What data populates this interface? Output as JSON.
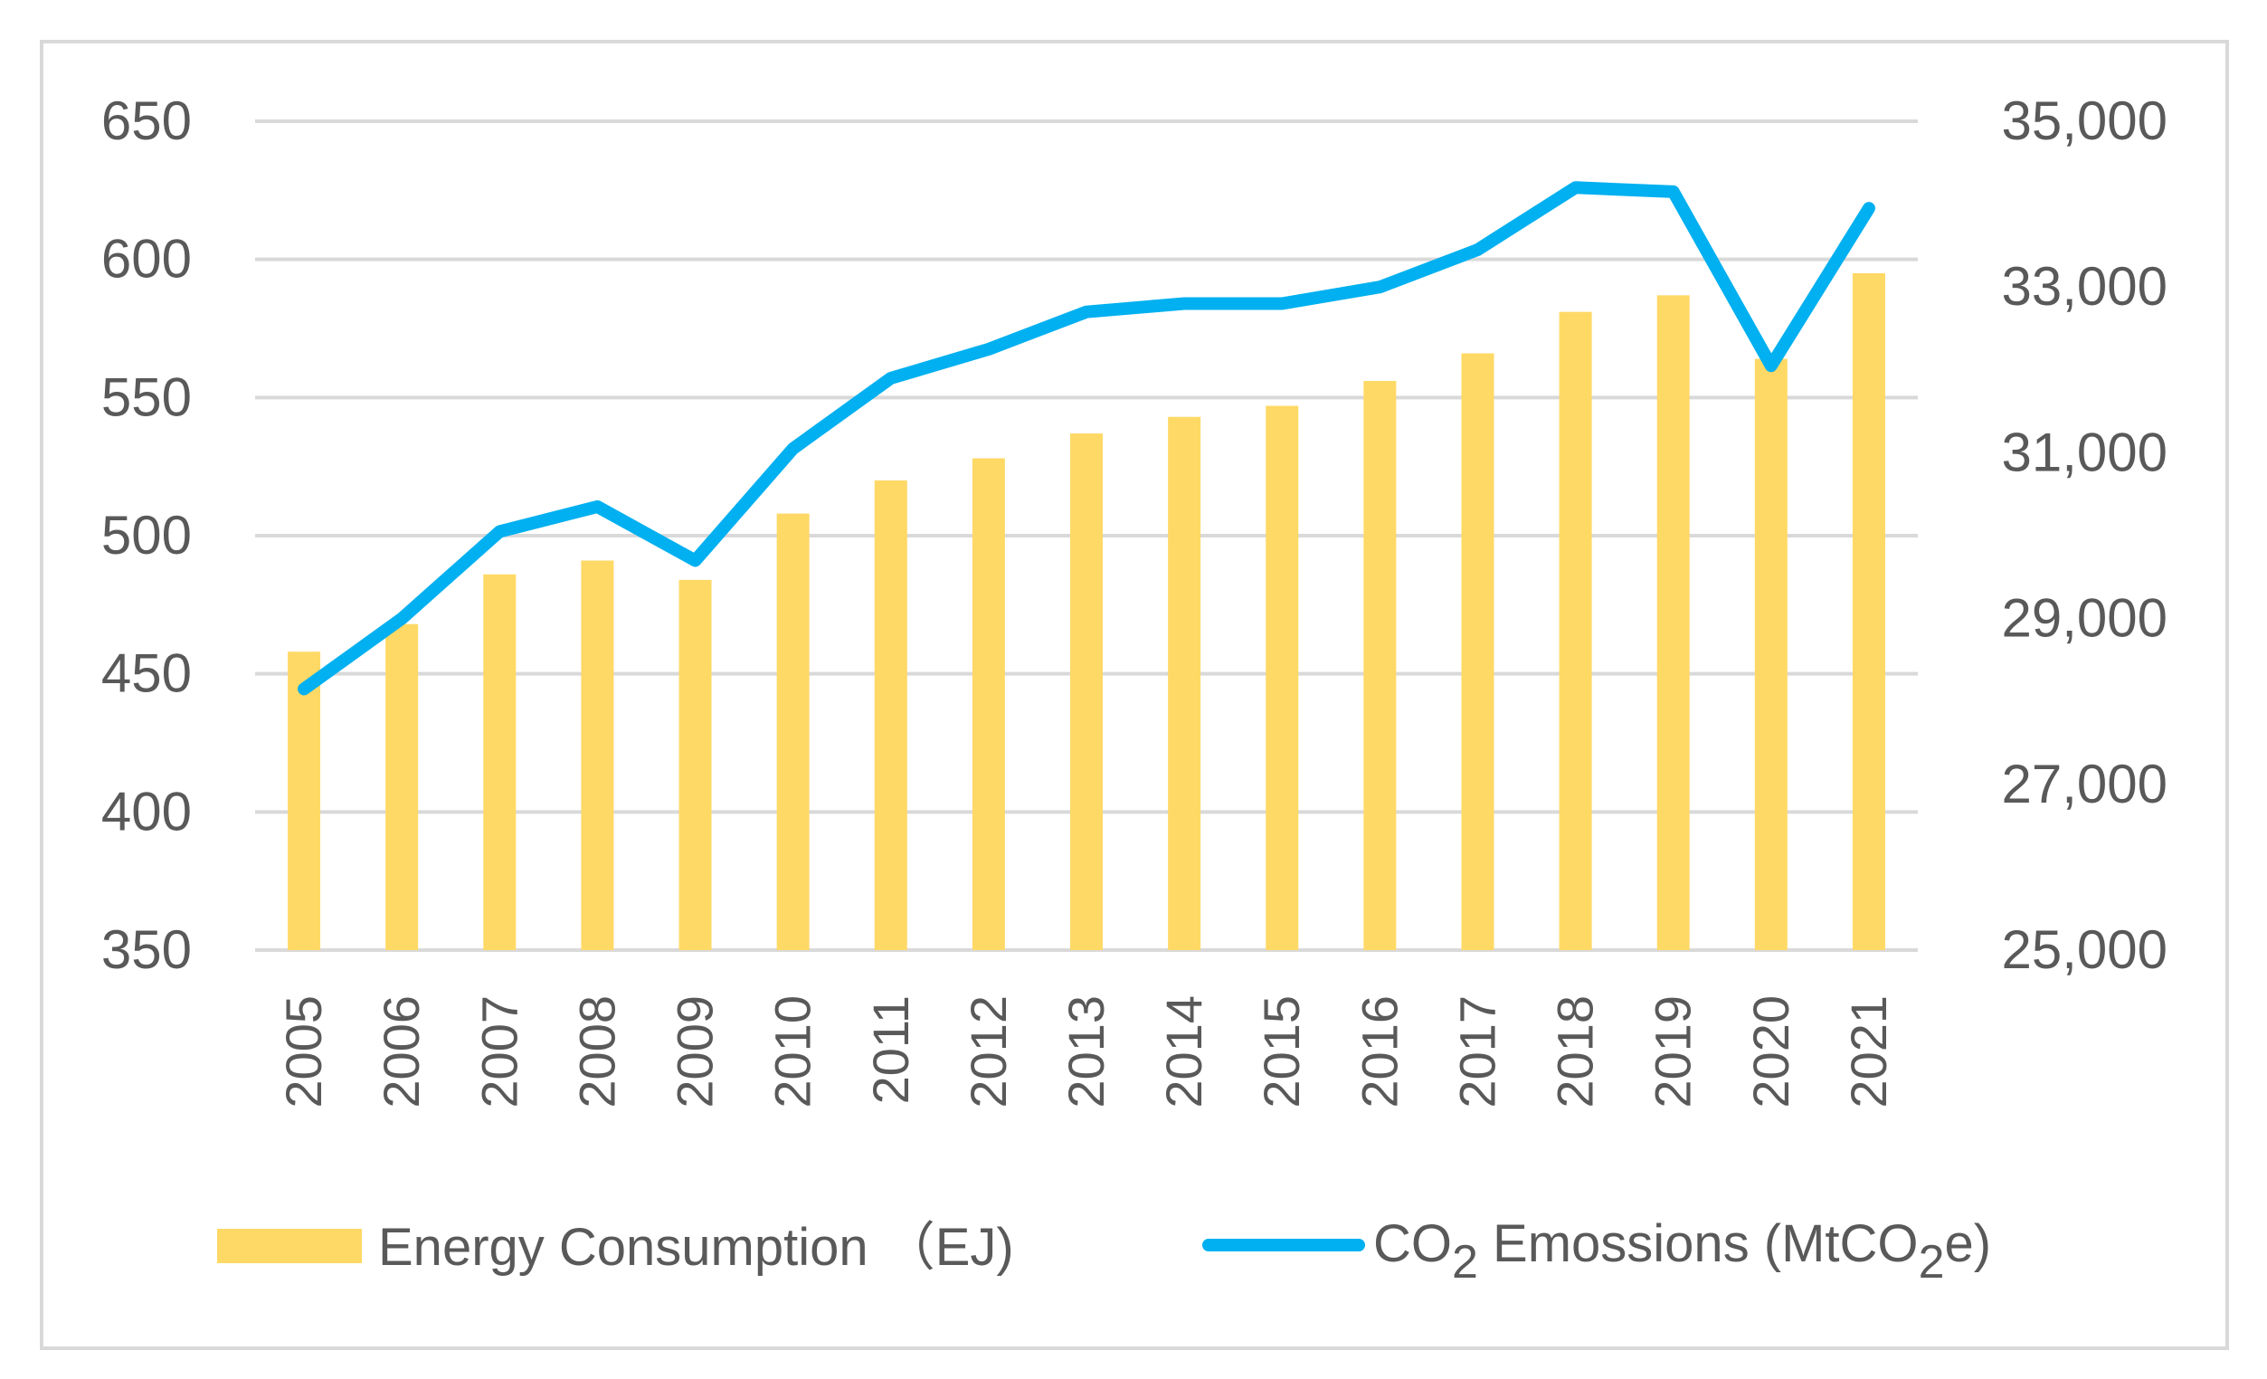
{
  "chart_data": {
    "type": "bar+line",
    "categories": [
      "2005",
      "2006",
      "2007",
      "2008",
      "2009",
      "2010",
      "2011",
      "2012",
      "2013",
      "2014",
      "2015",
      "2016",
      "2017",
      "2018",
      "2019",
      "2020",
      "2021"
    ],
    "series": [
      {
        "name": "Energy Consumption (EJ)",
        "type": "bar",
        "axis": "left",
        "color": "#FFD966",
        "values": [
          458,
          468,
          486,
          491,
          484,
          508,
          520,
          528,
          537,
          543,
          547,
          556,
          566,
          581,
          587,
          564,
          595
        ]
      },
      {
        "name": "CO2 Emossions (MtCO2e)",
        "type": "line",
        "axis": "right",
        "color": "#00B0F0",
        "values": [
          28150,
          29000,
          30050,
          30350,
          29700,
          31050,
          31900,
          32250,
          32700,
          32800,
          32800,
          33000,
          33450,
          34200,
          34150,
          32050,
          33950
        ]
      }
    ],
    "yleft": {
      "ylim": [
        350,
        650
      ],
      "ticks": [
        "350",
        "400",
        "450",
        "500",
        "550",
        "600",
        "650"
      ]
    },
    "yright": {
      "ylim": [
        25000,
        35000
      ],
      "ticks": [
        "25,000",
        "27,000",
        "29,000",
        "31,000",
        "33,000",
        "35,000"
      ]
    },
    "legend": {
      "position": "bottom",
      "energy_label": "Energy Consumption （EJ)",
      "co2_prefix": "CO",
      "co2_sub": "2",
      "co2_mid": " Emossions (MtCO",
      "co2_sub2": "2",
      "co2_suffix": "e)"
    },
    "title": "",
    "grid": true
  }
}
